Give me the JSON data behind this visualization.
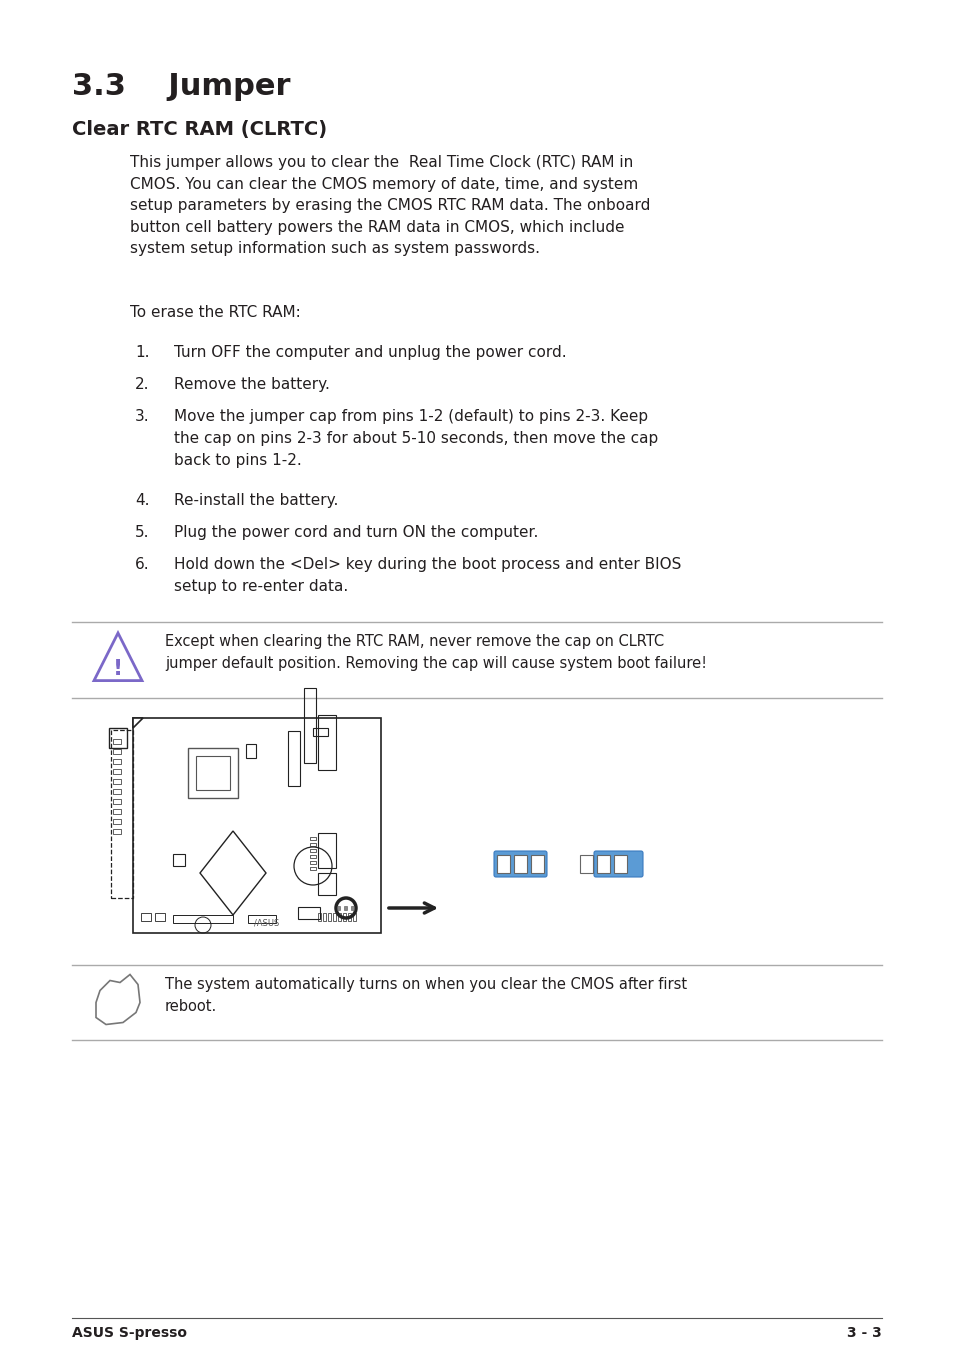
{
  "bg_color": "#ffffff",
  "title": "3.3    Jumper",
  "subtitle": "Clear RTC RAM (CLRTC)",
  "body_text": "This jumper allows you to clear the  Real Time Clock (RTC) RAM in\nCMOS. You can clear the CMOS memory of date, time, and system\nsetup parameters by erasing the CMOS RTC RAM data. The onboard\nbutton cell battery powers the RAM data in CMOS, which include\nsystem setup information such as system passwords.",
  "erase_text": "To erase the RTC RAM:",
  "steps": [
    [
      "Turn OFF the computer and unplug the power cord."
    ],
    [
      "Remove the battery."
    ],
    [
      "Move the jumper cap from pins 1-2 (default) to pins 2-3. Keep",
      "the cap on pins 2-3 for about 5-10 seconds, then move the cap",
      "back to pins 1-2."
    ],
    [
      "Re-install the battery."
    ],
    [
      "Plug the power cord and turn ON the computer."
    ],
    [
      "Hold down the <Del> key during the boot process and enter BIOS",
      "setup to re-enter data."
    ]
  ],
  "warning_text": "Except when clearing the RTC RAM, never remove the cap on CLRTC\njumper default position. Removing the cap will cause system boot failure!",
  "note_text": "The system automatically turns on when you clear the CMOS after first\nreboot.",
  "footer_left": "ASUS S-presso",
  "footer_right": "3 - 3",
  "jumper_blue": "#5b9bd5",
  "text_color": "#231f20",
  "warning_icon_color": "#7b68c8",
  "line_color": "#aaaaaa",
  "board_color": "#222222"
}
